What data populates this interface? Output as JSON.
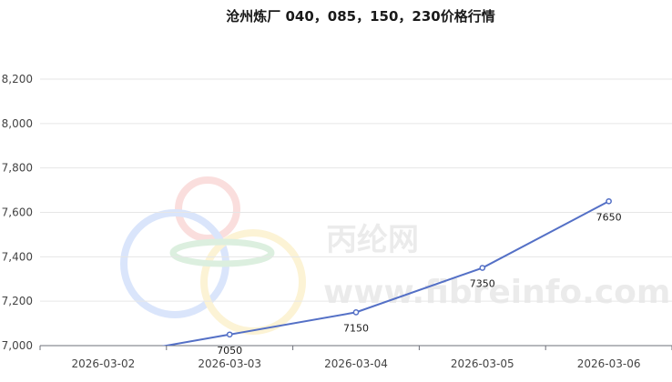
{
  "chart_data": {
    "type": "line",
    "title": "沧州炼厂 040，085，150，230价格行情",
    "x": [
      "2026-03-02",
      "2026-03-03",
      "2026-03-04",
      "2026-03-05",
      "2026-03-06"
    ],
    "series": [
      {
        "values": [
          6950,
          7050,
          7150,
          7350,
          7650
        ],
        "labels": [
          "",
          "7050",
          "7150",
          "7350",
          "7650"
        ]
      }
    ],
    "y_ticks": [
      "7,000",
      "7,200",
      "7,400",
      "7,600",
      "7,800",
      "8,000",
      "8,200"
    ],
    "ylim": [
      7000,
      8200
    ],
    "grid": true,
    "line_color": "#5470c6"
  },
  "watermark": {
    "brand_cn": "丙纶网",
    "brand_url": "www.fibreinfo.com"
  }
}
